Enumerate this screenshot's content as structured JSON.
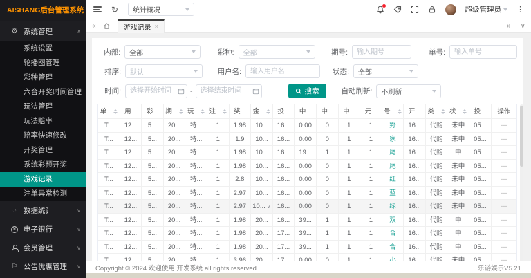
{
  "app": {
    "logo": "AISHANG后台管理系统",
    "copyright": "Copyright © 2024 欢迎使用 开发系统 all rights reserved.",
    "version": "乐游娱乐V5.21"
  },
  "colors": {
    "accent": "#009688",
    "logo_orange": "#ff9300",
    "notify_red": "#f5222d",
    "number_teal": "#26a69a"
  },
  "icons": {
    "collapse_left": "«",
    "collapse_right": "»",
    "chevron_down": "∨",
    "chevron_up": "∧",
    "close": "×",
    "kebab": "⋮",
    "refresh": "↻",
    "gear": "⚙",
    "pie": "◔",
    "flag": "⚐"
  },
  "topbar": {
    "nav_select_value": "统计概况",
    "username": "超级管理员"
  },
  "tabbar": {
    "active_tab": "游戏记录"
  },
  "sidebar": {
    "sections": [
      {
        "label": "系统管理",
        "icon": "gear-icon",
        "state": "expanded",
        "children": [
          "系统设置",
          "轮播图管理",
          "彩种管理",
          "六合开奖时间管理",
          "玩法管理",
          "玩法赔率",
          "赔率快速修改",
          "开奖管理",
          "系统彩预开奖",
          "游戏记录",
          "注单异常检测"
        ],
        "active": "游戏记录"
      },
      {
        "label": "数据统计",
        "icon": "pie-icon",
        "state": "collapsed"
      },
      {
        "label": "电子银行",
        "icon": "coin-icon",
        "state": "collapsed"
      },
      {
        "label": "会员管理",
        "icon": "user-icon",
        "state": "collapsed"
      },
      {
        "label": "公告优惠管理",
        "icon": "flag-icon",
        "state": "collapsed"
      }
    ]
  },
  "filters": {
    "neibu_label": "内部:",
    "neibu_value": "全部",
    "caizhong_label": "彩种:",
    "caizhong_value": "全部",
    "qihao_label": "期号:",
    "qihao_placeholder": "输入期号",
    "danhao_label": "单号:",
    "danhao_placeholder": "输入单号",
    "paixu_label": "排序:",
    "paixu_value": "默认",
    "yonghuming_label": "用户名:",
    "yonghuming_placeholder": "输入用户名",
    "zhuangtai_label": "状态:",
    "zhuangtai_value": "全部",
    "shijian_label": "时间:",
    "start_placeholder": "选择开始时间",
    "end_placeholder": "选择结束时间",
    "range_sep": "-",
    "search_label": "搜索",
    "refresh_label": "自动刷新:",
    "refresh_value": "不刷新"
  },
  "table": {
    "columns": [
      {
        "label": "单...",
        "sortable": true
      },
      {
        "label": "用...",
        "sortable": false
      },
      {
        "label": "彩...",
        "sortable": false
      },
      {
        "label": "期...",
        "sortable": true
      },
      {
        "label": "玩...",
        "sortable": true
      },
      {
        "label": "注...",
        "sortable": true
      },
      {
        "label": "奖...",
        "sortable": false
      },
      {
        "label": "金...",
        "sortable": true
      },
      {
        "label": "投...",
        "sortable": false
      },
      {
        "label": "中...",
        "sortable": false
      },
      {
        "label": "中...",
        "sortable": false
      },
      {
        "label": "中...",
        "sortable": false
      },
      {
        "label": "元...",
        "sortable": false
      },
      {
        "label": "号...",
        "sortable": true
      },
      {
        "label": "开...",
        "sortable": false
      },
      {
        "label": "类...",
        "sortable": true
      },
      {
        "label": "状...",
        "sortable": true
      },
      {
        "label": "投...",
        "sortable": false
      },
      {
        "label": "操作",
        "sortable": false
      }
    ],
    "teal_column": 13,
    "hover_row": 6,
    "hover_chevron_col": 7,
    "op_column": 18,
    "rows": [
      [
        "T...",
        "12...",
        "5...",
        "20...",
        "特...",
        "1",
        "1.98",
        "10...",
        "16...",
        "0.00",
        "0",
        "1",
        "1",
        "野",
        "16...",
        "代购",
        "未中",
        "05...",
        "---"
      ],
      [
        "T...",
        "12...",
        "5...",
        "20...",
        "特...",
        "1",
        "1.9",
        "10...",
        "16...",
        "0.00",
        "0",
        "1",
        "1",
        "家",
        "16...",
        "代购",
        "未中",
        "05...",
        "---"
      ],
      [
        "T...",
        "12...",
        "5...",
        "20...",
        "特...",
        "1",
        "1.98",
        "10...",
        "16...",
        "19...",
        "1",
        "1",
        "1",
        "尾",
        "16...",
        "代购",
        "中",
        "05...",
        "---"
      ],
      [
        "T...",
        "12...",
        "5...",
        "20...",
        "特...",
        "1",
        "1.98",
        "10...",
        "16...",
        "0.00",
        "0",
        "1",
        "1",
        "尾",
        "16...",
        "代购",
        "未中",
        "05...",
        "---"
      ],
      [
        "T...",
        "12...",
        "5...",
        "20...",
        "特...",
        "1",
        "2.8",
        "10...",
        "16...",
        "0.00",
        "0",
        "1",
        "1",
        "红",
        "16...",
        "代购",
        "未中",
        "05...",
        "---"
      ],
      [
        "T...",
        "12...",
        "5...",
        "20...",
        "特...",
        "1",
        "2.97",
        "10...",
        "16...",
        "0.00",
        "0",
        "1",
        "1",
        "蓝",
        "16...",
        "代购",
        "未中",
        "05...",
        "---"
      ],
      [
        "T...",
        "12...",
        "5...",
        "20...",
        "特...",
        "1",
        "2.97",
        "10...",
        "16...",
        "0.00",
        "0",
        "1",
        "1",
        "绿",
        "16...",
        "代购",
        "未中",
        "05...",
        "---"
      ],
      [
        "T...",
        "12...",
        "5...",
        "20...",
        "特...",
        "1",
        "1.98",
        "20...",
        "16...",
        "39...",
        "1",
        "1",
        "1",
        "双",
        "16...",
        "代购",
        "中",
        "05...",
        "---"
      ],
      [
        "T...",
        "12...",
        "5...",
        "20...",
        "特...",
        "1",
        "1.98",
        "20...",
        "17...",
        "39...",
        "1",
        "1",
        "1",
        "合",
        "16...",
        "代购",
        "中",
        "05...",
        "---"
      ],
      [
        "T...",
        "12...",
        "5...",
        "20...",
        "特...",
        "1",
        "1.98",
        "20...",
        "17...",
        "39...",
        "1",
        "1",
        "1",
        "合",
        "16...",
        "代购",
        "中",
        "05...",
        "---"
      ],
      [
        "T...",
        "12...",
        "5...",
        "20...",
        "特...",
        "1",
        "3.96",
        "20...",
        "17...",
        "0.00",
        "0",
        "1",
        "1",
        "小",
        "16...",
        "代购",
        "未中",
        "05...",
        "---"
      ]
    ]
  }
}
